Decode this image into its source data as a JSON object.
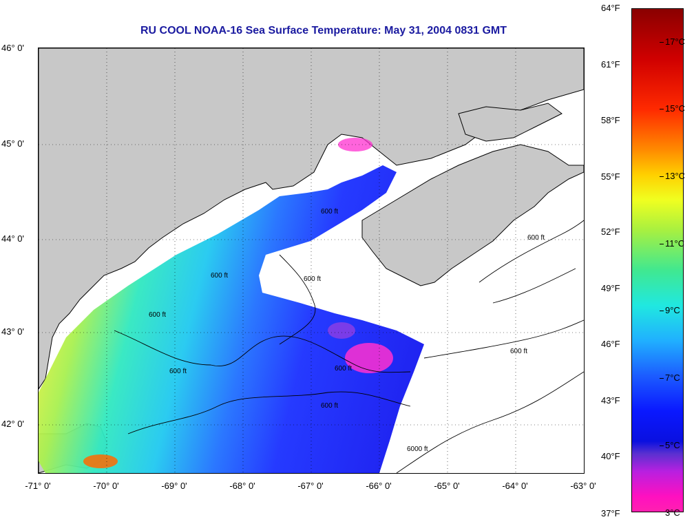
{
  "title": "RU COOL  NOAA-16  Sea Surface Temperature:  May 31, 2004 0831 GMT",
  "map": {
    "lon_labels": [
      "-71° 0'",
      "-70° 0'",
      "-69° 0'",
      "-68° 0'",
      "-67° 0'",
      "-66° 0'",
      "-65° 0'",
      "-64° 0'",
      "-63° 0'"
    ],
    "lat_labels": [
      "46° 0'",
      "45° 0'",
      "44° 0'",
      "43° 0'",
      "42° 0'"
    ],
    "contour_label": "600 ft",
    "contour_label_deep": "6000 ft",
    "colors": {
      "land": "#c8c8c8",
      "water": "#ffffff",
      "coast": "#000000"
    }
  },
  "colorbar": {
    "fahrenheit_ticks": [
      "64°F",
      "61°F",
      "58°F",
      "55°F",
      "52°F",
      "49°F",
      "46°F",
      "43°F",
      "40°F",
      "37°F"
    ],
    "celsius_ticks": [
      "17°C",
      "15°C",
      "13°C",
      "11°C",
      "9°C",
      "7°C",
      "5°C",
      "3°C"
    ]
  }
}
